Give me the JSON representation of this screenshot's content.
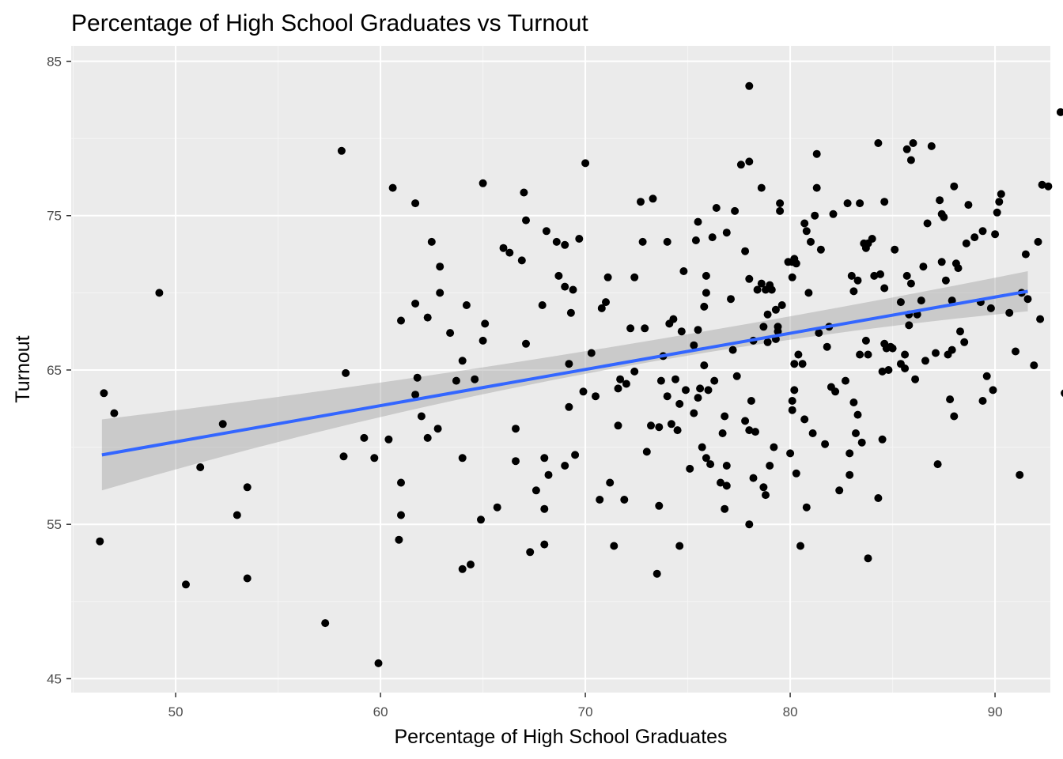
{
  "colors": {
    "panel_bg": "#ebebeb",
    "grid_major": "#ffffff",
    "grid_minor": "#f5f5f5",
    "points": "#000000",
    "fit_line": "#3366ff",
    "ribbon": "#999999",
    "tick_text": "#4d4d4d",
    "text": "#000000"
  },
  "chart_data": {
    "type": "scatter",
    "title": "Percentage of High School Graduates vs Turnout",
    "xlabel": "Percentage of High School Graduates",
    "ylabel": "Turnout",
    "xlim": [
      44.9,
      92.7
    ],
    "ylim": [
      44.1,
      86.0
    ],
    "xticks": [
      50,
      60,
      70,
      80,
      90
    ],
    "yticks": [
      45,
      55,
      65,
      75,
      85
    ],
    "grid": true,
    "legend": "none",
    "fit": {
      "method": "linear regression",
      "x_start": 46.4,
      "y_start": 59.5,
      "x_end": 91.6,
      "y_end": 70.1,
      "ci_start": [
        57.2,
        61.8
      ],
      "ci_mid": [
        64.5,
        66.0
      ],
      "ci_end": [
        68.8,
        71.4
      ]
    },
    "points": [
      [
        46.3,
        53.9
      ],
      [
        46.5,
        63.5
      ],
      [
        47.0,
        62.2
      ],
      [
        49.2,
        70.0
      ],
      [
        50.5,
        51.1
      ],
      [
        51.2,
        58.7
      ],
      [
        52.3,
        61.5
      ],
      [
        53.0,
        55.6
      ],
      [
        53.5,
        57.4
      ],
      [
        53.5,
        51.5
      ],
      [
        57.3,
        48.6
      ],
      [
        58.1,
        79.2
      ],
      [
        58.2,
        59.4
      ],
      [
        58.3,
        64.8
      ],
      [
        59.2,
        60.6
      ],
      [
        59.7,
        59.3
      ],
      [
        59.9,
        46.0
      ],
      [
        60.4,
        60.5
      ],
      [
        60.6,
        76.8
      ],
      [
        60.9,
        54.0
      ],
      [
        61.0,
        68.2
      ],
      [
        61.0,
        57.7
      ],
      [
        61.0,
        55.6
      ],
      [
        61.7,
        63.4
      ],
      [
        61.8,
        64.5
      ],
      [
        61.7,
        69.3
      ],
      [
        61.7,
        75.8
      ],
      [
        62.0,
        62.0
      ],
      [
        62.3,
        68.4
      ],
      [
        62.3,
        60.6
      ],
      [
        62.5,
        73.3
      ],
      [
        62.8,
        61.2
      ],
      [
        62.9,
        71.7
      ],
      [
        62.9,
        70.0
      ],
      [
        63.4,
        67.4
      ],
      [
        63.7,
        64.3
      ],
      [
        64.0,
        65.6
      ],
      [
        64.0,
        59.3
      ],
      [
        64.0,
        52.1
      ],
      [
        64.2,
        69.2
      ],
      [
        64.4,
        52.4
      ],
      [
        64.6,
        64.4
      ],
      [
        64.9,
        55.3
      ],
      [
        65.0,
        66.9
      ],
      [
        65.0,
        77.1
      ],
      [
        65.1,
        68.0
      ],
      [
        65.7,
        56.1
      ],
      [
        66.0,
        72.9
      ],
      [
        66.3,
        72.6
      ],
      [
        66.6,
        61.2
      ],
      [
        66.6,
        59.1
      ],
      [
        66.9,
        72.1
      ],
      [
        67.0,
        76.5
      ],
      [
        67.1,
        74.7
      ],
      [
        67.1,
        66.7
      ],
      [
        67.3,
        53.2
      ],
      [
        67.6,
        57.2
      ],
      [
        67.9,
        69.2
      ],
      [
        68.0,
        59.3
      ],
      [
        68.0,
        56.0
      ],
      [
        68.0,
        53.7
      ],
      [
        68.1,
        74.0
      ],
      [
        68.2,
        58.2
      ],
      [
        68.6,
        73.3
      ],
      [
        68.7,
        71.1
      ],
      [
        69.0,
        70.4
      ],
      [
        69.0,
        73.1
      ],
      [
        69.0,
        58.8
      ],
      [
        69.2,
        62.6
      ],
      [
        69.2,
        65.4
      ],
      [
        69.3,
        68.7
      ],
      [
        69.4,
        70.2
      ],
      [
        69.5,
        59.5
      ],
      [
        69.7,
        73.5
      ],
      [
        69.9,
        63.6
      ],
      [
        70.0,
        78.4
      ],
      [
        70.3,
        66.1
      ],
      [
        70.5,
        63.3
      ],
      [
        70.7,
        56.6
      ],
      [
        70.8,
        69.0
      ],
      [
        71.0,
        69.4
      ],
      [
        71.1,
        71.0
      ],
      [
        71.2,
        57.7
      ],
      [
        71.4,
        53.6
      ],
      [
        71.6,
        61.4
      ],
      [
        71.6,
        63.8
      ],
      [
        71.7,
        64.4
      ],
      [
        71.9,
        56.6
      ],
      [
        72.0,
        64.1
      ],
      [
        72.2,
        67.7
      ],
      [
        72.4,
        71.0
      ],
      [
        72.4,
        64.9
      ],
      [
        72.7,
        75.9
      ],
      [
        72.8,
        73.3
      ],
      [
        72.9,
        67.7
      ],
      [
        73.0,
        59.7
      ],
      [
        73.2,
        61.4
      ],
      [
        73.3,
        76.1
      ],
      [
        73.5,
        51.8
      ],
      [
        73.6,
        61.3
      ],
      [
        73.6,
        56.2
      ],
      [
        73.7,
        64.3
      ],
      [
        73.8,
        65.9
      ],
      [
        74.0,
        73.3
      ],
      [
        74.0,
        63.3
      ],
      [
        74.1,
        68.0
      ],
      [
        74.2,
        61.5
      ],
      [
        74.3,
        68.3
      ],
      [
        74.4,
        64.4
      ],
      [
        74.6,
        62.8
      ],
      [
        74.5,
        61.1
      ],
      [
        74.6,
        53.6
      ],
      [
        74.7,
        67.5
      ],
      [
        74.8,
        71.4
      ],
      [
        74.9,
        63.7
      ],
      [
        75.1,
        58.6
      ],
      [
        75.3,
        62.2
      ],
      [
        75.3,
        66.6
      ],
      [
        75.4,
        73.4
      ],
      [
        75.5,
        74.6
      ],
      [
        75.5,
        63.2
      ],
      [
        75.5,
        67.6
      ],
      [
        75.6,
        63.8
      ],
      [
        75.7,
        60.0
      ],
      [
        75.8,
        69.1
      ],
      [
        75.8,
        65.3
      ],
      [
        75.9,
        71.1
      ],
      [
        75.9,
        70.0
      ],
      [
        75.9,
        59.3
      ],
      [
        76.0,
        63.7
      ],
      [
        76.1,
        58.9
      ],
      [
        76.3,
        64.3
      ],
      [
        76.2,
        73.6
      ],
      [
        76.4,
        75.5
      ],
      [
        76.6,
        57.7
      ],
      [
        76.7,
        60.9
      ],
      [
        76.8,
        62.0
      ],
      [
        76.8,
        56.0
      ],
      [
        76.9,
        57.5
      ],
      [
        76.9,
        58.8
      ],
      [
        76.9,
        73.9
      ],
      [
        77.1,
        69.6
      ],
      [
        77.3,
        75.3
      ],
      [
        77.2,
        66.3
      ],
      [
        77.4,
        64.6
      ],
      [
        77.6,
        78.3
      ],
      [
        77.8,
        72.7
      ],
      [
        77.8,
        61.7
      ],
      [
        78.0,
        83.4
      ],
      [
        78.0,
        78.5
      ],
      [
        78.0,
        70.9
      ],
      [
        78.0,
        61.1
      ],
      [
        78.0,
        55.0
      ],
      [
        78.1,
        63.0
      ],
      [
        78.2,
        58.0
      ],
      [
        78.2,
        66.9
      ],
      [
        78.3,
        61.0
      ],
      [
        78.4,
        70.2
      ],
      [
        78.6,
        76.8
      ],
      [
        78.6,
        70.6
      ],
      [
        78.7,
        67.8
      ],
      [
        78.7,
        57.4
      ],
      [
        78.8,
        56.9
      ],
      [
        78.8,
        70.2
      ],
      [
        78.9,
        66.8
      ],
      [
        78.9,
        68.6
      ],
      [
        79.0,
        70.5
      ],
      [
        79.0,
        58.8
      ],
      [
        79.1,
        70.2
      ],
      [
        79.2,
        60.0
      ],
      [
        79.3,
        67.0
      ],
      [
        79.3,
        68.9
      ],
      [
        79.4,
        67.5
      ],
      [
        79.4,
        67.8
      ],
      [
        79.5,
        75.3
      ],
      [
        79.5,
        75.8
      ],
      [
        79.6,
        69.2
      ],
      [
        79.9,
        72.0
      ],
      [
        80.0,
        59.6
      ],
      [
        80.1,
        62.4
      ],
      [
        80.1,
        72.0
      ],
      [
        80.2,
        65.4
      ],
      [
        80.1,
        71.0
      ],
      [
        80.2,
        72.2
      ],
      [
        80.1,
        63.0
      ],
      [
        80.2,
        63.7
      ],
      [
        80.3,
        58.3
      ],
      [
        80.3,
        71.9
      ],
      [
        80.4,
        66.0
      ],
      [
        80.5,
        53.6
      ],
      [
        80.6,
        65.4
      ],
      [
        80.7,
        74.5
      ],
      [
        80.7,
        61.8
      ],
      [
        80.8,
        56.1
      ],
      [
        80.8,
        74.0
      ],
      [
        80.9,
        70.0
      ],
      [
        81.0,
        73.3
      ],
      [
        81.1,
        60.9
      ],
      [
        81.2,
        75.0
      ],
      [
        81.3,
        76.8
      ],
      [
        81.3,
        79.0
      ],
      [
        81.4,
        67.4
      ],
      [
        81.5,
        72.8
      ],
      [
        81.7,
        60.2
      ],
      [
        81.8,
        66.5
      ],
      [
        81.9,
        67.8
      ],
      [
        82.0,
        63.9
      ],
      [
        82.1,
        75.1
      ],
      [
        82.2,
        63.6
      ],
      [
        82.4,
        57.2
      ],
      [
        82.7,
        64.3
      ],
      [
        82.8,
        75.8
      ],
      [
        82.9,
        58.2
      ],
      [
        82.9,
        59.6
      ],
      [
        83.0,
        71.1
      ],
      [
        83.1,
        70.1
      ],
      [
        83.1,
        62.9
      ],
      [
        83.2,
        60.9
      ],
      [
        83.3,
        62.1
      ],
      [
        83.3,
        70.8
      ],
      [
        83.4,
        66.0
      ],
      [
        83.4,
        75.8
      ],
      [
        83.5,
        60.3
      ],
      [
        83.6,
        73.2
      ],
      [
        83.7,
        66.9
      ],
      [
        83.7,
        72.9
      ],
      [
        83.8,
        73.2
      ],
      [
        83.8,
        52.8
      ],
      [
        83.8,
        66.0
      ],
      [
        84.0,
        73.5
      ],
      [
        84.1,
        71.1
      ],
      [
        84.3,
        79.7
      ],
      [
        84.3,
        56.7
      ],
      [
        84.4,
        71.2
      ],
      [
        84.5,
        60.5
      ],
      [
        84.5,
        64.9
      ],
      [
        84.6,
        70.3
      ],
      [
        84.6,
        66.7
      ],
      [
        84.6,
        75.9
      ],
      [
        84.7,
        66.4
      ],
      [
        84.8,
        65.0
      ],
      [
        84.9,
        66.5
      ],
      [
        85.0,
        66.4
      ],
      [
        85.1,
        72.8
      ],
      [
        85.4,
        69.4
      ],
      [
        85.4,
        65.4
      ],
      [
        85.6,
        65.1
      ],
      [
        85.6,
        66.0
      ],
      [
        85.7,
        79.3
      ],
      [
        85.7,
        71.1
      ],
      [
        85.8,
        67.9
      ],
      [
        85.8,
        68.6
      ],
      [
        85.9,
        70.6
      ],
      [
        85.9,
        78.6
      ],
      [
        86.0,
        79.7
      ],
      [
        86.1,
        64.4
      ],
      [
        86.2,
        68.6
      ],
      [
        86.4,
        69.5
      ],
      [
        86.5,
        71.7
      ],
      [
        86.6,
        65.6
      ],
      [
        86.7,
        74.5
      ],
      [
        86.9,
        79.5
      ],
      [
        87.1,
        66.1
      ],
      [
        87.2,
        58.9
      ],
      [
        87.3,
        76.0
      ],
      [
        87.4,
        72.0
      ],
      [
        87.4,
        75.1
      ],
      [
        87.5,
        74.9
      ],
      [
        87.6,
        70.8
      ],
      [
        87.7,
        66.0
      ],
      [
        87.8,
        63.1
      ],
      [
        87.9,
        66.3
      ],
      [
        87.9,
        69.5
      ],
      [
        88.0,
        76.9
      ],
      [
        88.0,
        62.0
      ],
      [
        88.1,
        71.9
      ],
      [
        88.2,
        71.6
      ],
      [
        88.3,
        67.5
      ],
      [
        88.5,
        66.8
      ],
      [
        88.6,
        73.2
      ],
      [
        88.7,
        75.7
      ],
      [
        89.0,
        73.6
      ],
      [
        89.3,
        69.4
      ],
      [
        89.4,
        63.0
      ],
      [
        89.4,
        74.0
      ],
      [
        89.8,
        69.0
      ],
      [
        89.6,
        64.6
      ],
      [
        89.9,
        63.7
      ],
      [
        90.0,
        73.8
      ],
      [
        90.1,
        75.2
      ],
      [
        90.2,
        75.9
      ],
      [
        90.3,
        76.4
      ],
      [
        90.7,
        68.7
      ],
      [
        91.0,
        66.2
      ],
      [
        91.2,
        58.2
      ],
      [
        91.3,
        70.0
      ],
      [
        91.5,
        72.5
      ],
      [
        91.6,
        69.6
      ],
      [
        91.9,
        65.3
      ],
      [
        92.1,
        73.3
      ],
      [
        92.2,
        68.3
      ],
      [
        92.3,
        77.0
      ],
      [
        92.6,
        76.9
      ],
      [
        93.2,
        81.7
      ],
      [
        93.4,
        63.5
      ]
    ]
  }
}
